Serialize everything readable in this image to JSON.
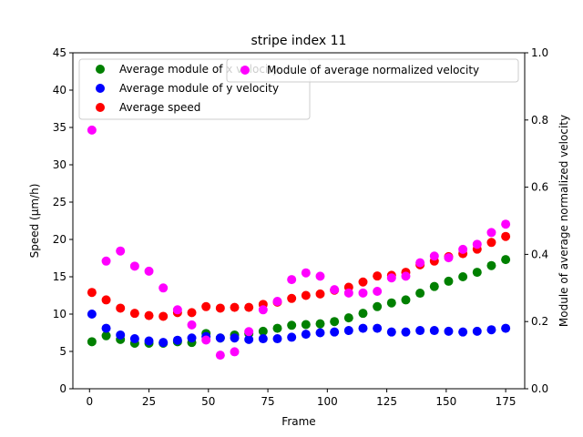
{
  "chart_data": {
    "type": "scatter",
    "title": "stripe index 11",
    "xlabel": "Frame",
    "ylabel": "Speed (μm/h)",
    "y2label": "Module of average normalized velocity",
    "xlim": [
      -7,
      183
    ],
    "ylim": [
      0,
      45
    ],
    "y2lim": [
      0,
      1.0
    ],
    "xticks": [
      0,
      25,
      50,
      75,
      100,
      125,
      150,
      175
    ],
    "yticks": [
      0,
      5,
      10,
      15,
      20,
      25,
      30,
      35,
      40,
      45
    ],
    "y2ticks": [
      0.0,
      0.2,
      0.4,
      0.6,
      0.8,
      1.0
    ],
    "x": [
      1,
      7,
      13,
      19,
      25,
      31,
      37,
      43,
      49,
      55,
      61,
      67,
      73,
      79,
      85,
      91,
      97,
      103,
      109,
      115,
      121,
      127,
      133,
      139,
      145,
      151,
      157,
      163,
      169,
      175
    ],
    "series": [
      {
        "name": "Average module of x velocity",
        "axis": "left",
        "color": "#008000",
        "values": [
          6.3,
          7.1,
          6.6,
          6.1,
          6.1,
          6.1,
          6.3,
          6.2,
          7.4,
          6.8,
          7.2,
          7.4,
          7.7,
          8.1,
          8.5,
          8.6,
          8.7,
          9.0,
          9.5,
          10.1,
          11.0,
          11.5,
          11.9,
          12.8,
          13.7,
          14.4,
          15.0,
          15.6,
          16.5,
          17.3
        ]
      },
      {
        "name": "Average module of y velocity",
        "axis": "left",
        "color": "#0000ff",
        "values": [
          10.0,
          8.1,
          7.2,
          6.7,
          6.4,
          6.2,
          6.5,
          6.8,
          7.0,
          6.8,
          6.8,
          6.6,
          6.7,
          6.7,
          6.9,
          7.3,
          7.5,
          7.6,
          7.8,
          8.1,
          8.1,
          7.6,
          7.6,
          7.8,
          7.8,
          7.7,
          7.6,
          7.7,
          7.9,
          8.1
        ]
      },
      {
        "name": "Average speed",
        "axis": "left",
        "color": "#ff0000",
        "values": [
          12.9,
          11.9,
          10.8,
          10.1,
          9.8,
          9.7,
          10.2,
          10.2,
          11.0,
          10.8,
          10.9,
          10.9,
          11.3,
          11.6,
          12.1,
          12.5,
          12.7,
          13.2,
          13.6,
          14.3,
          15.1,
          15.2,
          15.6,
          16.6,
          17.1,
          17.7,
          18.1,
          18.7,
          19.6,
          20.4
        ]
      },
      {
        "name": "Module of average normalized velocity",
        "axis": "right",
        "color": "#ff00ff",
        "values": [
          0.77,
          0.38,
          0.41,
          0.365,
          0.35,
          0.3,
          0.235,
          0.19,
          0.145,
          0.1,
          0.11,
          0.17,
          0.235,
          0.26,
          0.325,
          0.345,
          0.335,
          0.295,
          0.285,
          0.285,
          0.29,
          0.33,
          0.335,
          0.375,
          0.395,
          0.39,
          0.415,
          0.43,
          0.465,
          0.49
        ]
      }
    ],
    "legend_left": {
      "location": "upper-left"
    },
    "legend_right": {
      "location": "upper-right"
    }
  }
}
